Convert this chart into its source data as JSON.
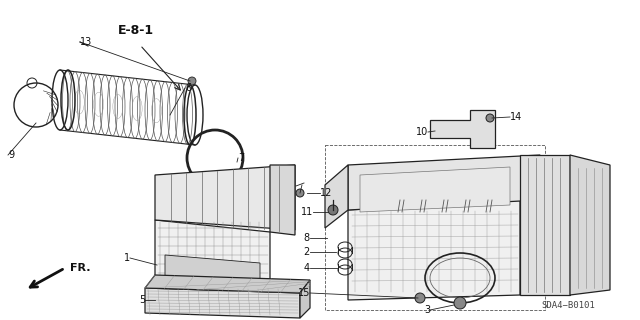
{
  "background_color": "#ffffff",
  "fig_width": 6.4,
  "fig_height": 3.2,
  "dpi": 100,
  "diagram_code": "E-8-1",
  "part_code": "SDA4−B0101",
  "direction_label": "FR.",
  "lc": "#222222",
  "lw": 0.8,
  "label_fontsize": 7.0,
  "label_color": "#111111"
}
